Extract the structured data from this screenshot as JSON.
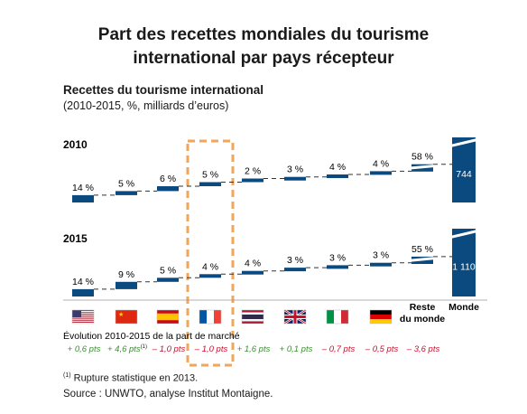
{
  "title_line1": "Part des recettes mondiales du tourisme",
  "title_line2": "international par pays récepteur",
  "subtitle": "Recettes du tourisme international",
  "units": "(2010-2015, %, milliards d’euros)",
  "change_heading": "Évolution 2010-2015 de la part de marché",
  "footnote_mark": "(1)",
  "footnote": "Rupture statistique en 2013.",
  "source": "Source : UNWTO, analyse Institut Montaigne.",
  "colors": {
    "bar": "#0b4a7e",
    "positive": "#3a8f2e",
    "negative": "#c8102e",
    "highlight": "#f2a65a"
  },
  "chart_data": {
    "type": "bar",
    "categories": [
      "États-Unis",
      "Chine",
      "Espagne",
      "France",
      "Thaïlande",
      "Royaume-Uni",
      "Italie",
      "Allemagne",
      "Reste du monde",
      "Monde"
    ],
    "category_labels": {
      "rest": [
        "Reste",
        "du monde"
      ],
      "world": "Monde"
    },
    "flags": [
      "us-flag",
      "china-flag",
      "spain-flag",
      "france-flag",
      "thailand-flag",
      "uk-flag",
      "italy-flag",
      "germany-flag"
    ],
    "highlighted_category": "France",
    "panels": [
      {
        "year": "2010",
        "values": [
          14,
          5,
          6,
          5,
          2,
          3,
          4,
          4,
          58
        ],
        "labels": [
          "14 %",
          "5 %",
          "6 %",
          "5 %",
          "2 %",
          "3 %",
          "4 %",
          "4 %",
          "58 %"
        ],
        "total": 744,
        "total_label": "744"
      },
      {
        "year": "2015",
        "values": [
          14,
          9,
          5,
          4,
          4,
          3,
          3,
          3,
          55
        ],
        "labels": [
          "14 %",
          "9 %",
          "5 %",
          "4 %",
          "4 %",
          "3 %",
          "3 %",
          "3 %",
          "55 %"
        ],
        "total": 1110,
        "total_label": "1 110"
      }
    ],
    "share_change_pts": [
      0.6,
      4.6,
      -1.0,
      -1.0,
      1.6,
      0.1,
      -0.7,
      -0.5,
      -3.6
    ],
    "share_change_labels": [
      "+ 0,6 pts",
      "+ 4,6 pts",
      "– 1,0 pts",
      "– 1,0 pts",
      "+ 1,6 pts",
      "+ 0,1 pts",
      "– 0,7 pts",
      "– 0,5 pts",
      "– 3,6 pts"
    ],
    "share_change_notes": [
      "",
      "(1)",
      "",
      "",
      "",
      "",
      "",
      "",
      ""
    ]
  }
}
